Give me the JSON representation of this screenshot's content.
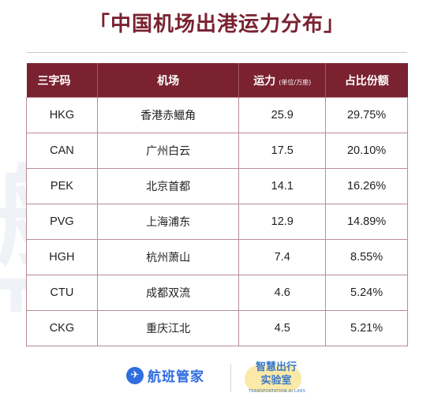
{
  "title": "「中国机场出港运力分布」",
  "table": {
    "headers": [
      "三字码",
      "机场",
      "运力",
      "占比份额"
    ],
    "capacity_unit": "(单位/万座)",
    "rows": [
      {
        "code": "HKG",
        "airport": "香港赤鱲角",
        "capacity": "25.9",
        "share": "29.75%"
      },
      {
        "code": "CAN",
        "airport": "广州白云",
        "capacity": "17.5",
        "share": "20.10%"
      },
      {
        "code": "PEK",
        "airport": "北京首都",
        "capacity": "14.1",
        "share": "16.26%"
      },
      {
        "code": "PVG",
        "airport": "上海浦东",
        "capacity": "12.9",
        "share": "14.89%"
      },
      {
        "code": "HGH",
        "airport": "杭州萧山",
        "capacity": "7.4",
        "share": "8.55%"
      },
      {
        "code": "CTU",
        "airport": "成都双流",
        "capacity": "4.6",
        "share": "5.24%"
      },
      {
        "code": "CKG",
        "airport": "重庆江北",
        "capacity": "4.5",
        "share": "5.21%"
      }
    ]
  },
  "footer": {
    "brand1_logo_glyph": "✈",
    "brand1": "航班管家",
    "brand2_line1": "智慧出行",
    "brand2_line2": "实验室",
    "brand2_sub": "TRANSPORTATION AI LABS"
  },
  "watermark": [
    "航",
    "班"
  ],
  "colors": {
    "accent": "#7a2230",
    "brand_blue": "#2f6de0",
    "lab_yellow": "#fbe9a8"
  }
}
